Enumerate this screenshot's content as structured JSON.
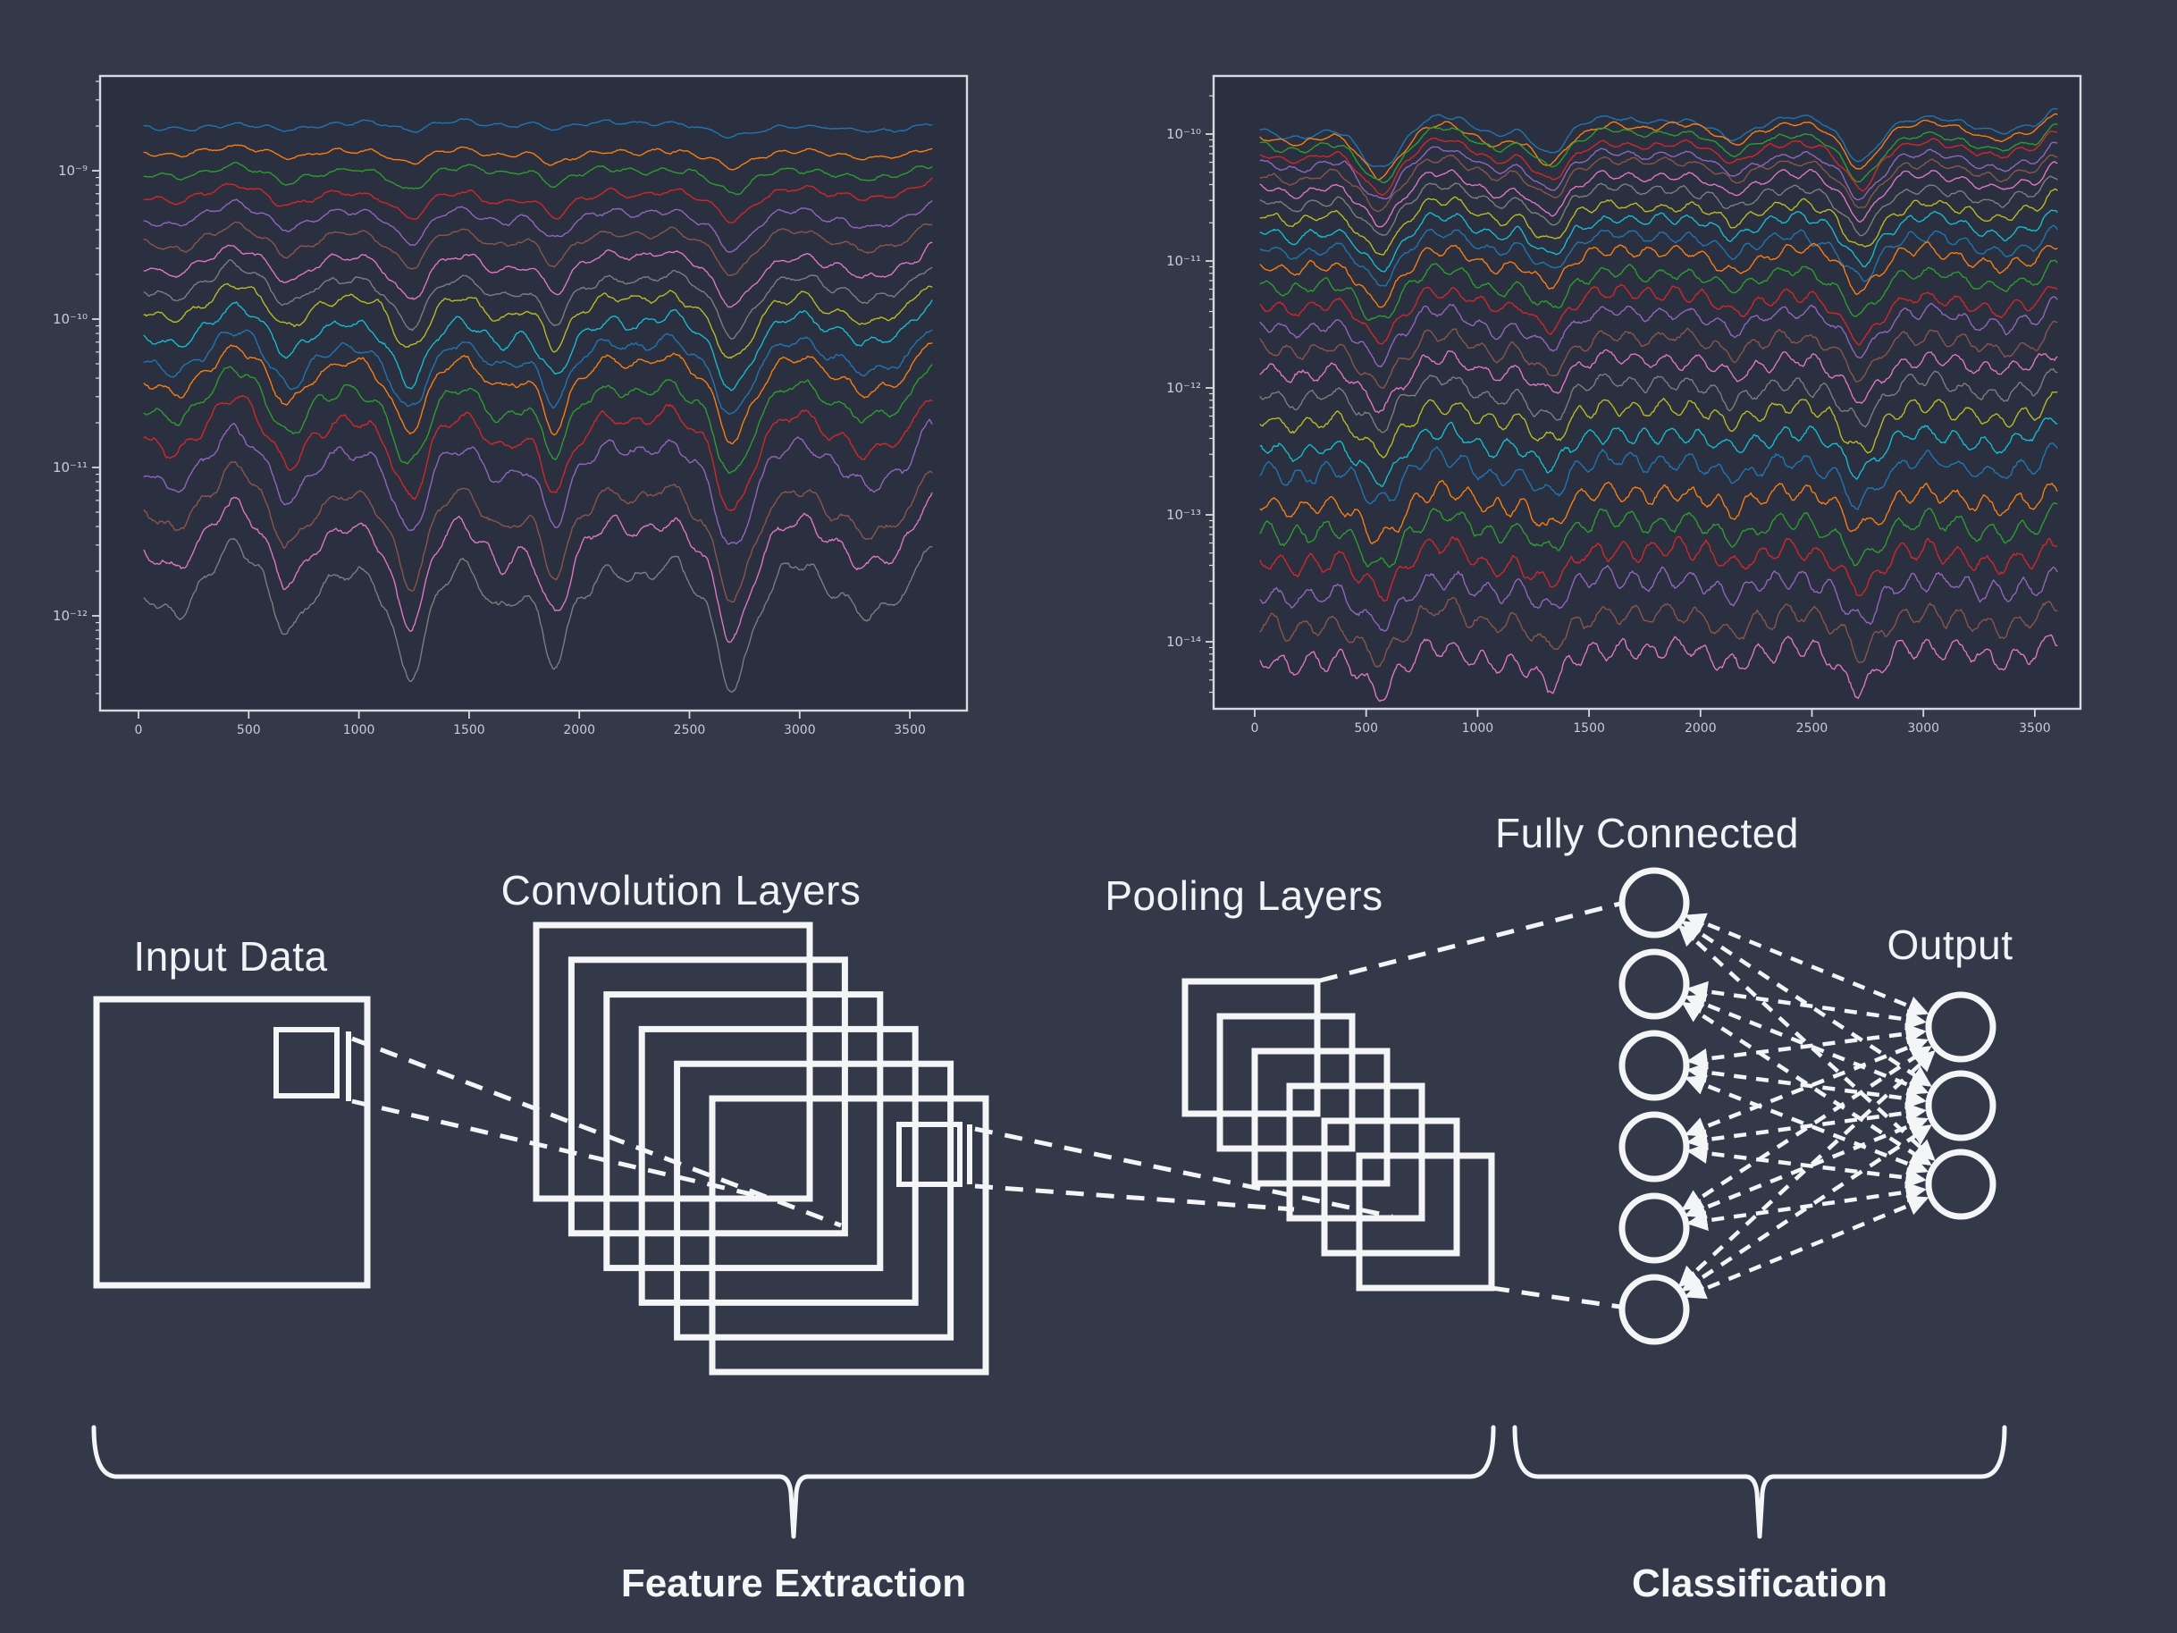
{
  "colors": {
    "background": "#333949",
    "panel_background": "#2b3040",
    "frame": "#d7d9de",
    "tick_label": "#c9ccd4",
    "diagram_stroke": "#f4f5f7"
  },
  "chart_data": [
    {
      "type": "line",
      "title": "",
      "position": "top-left",
      "xlabel": "",
      "ylabel": "",
      "x_range": [
        0,
        3600
      ],
      "xticks": [
        0,
        500,
        1000,
        1500,
        2000,
        2500,
        3000,
        3500
      ],
      "yscale": "log",
      "ytick_labels": [
        "10⁻⁹",
        "10⁻¹⁰",
        "10⁻¹¹",
        "10⁻¹²"
      ],
      "ytick_values": [
        1e-09,
        1e-10,
        1e-11,
        1e-12
      ],
      "grid": false,
      "legend": false,
      "n_traces": 18,
      "color_cycle": [
        "#1f77b4",
        "#ff7f0e",
        "#2ca02c",
        "#d62728",
        "#9467bd",
        "#8c564b",
        "#e377c2",
        "#7f7f7f",
        "#bcbd22",
        "#17becf"
      ],
      "trace_start_levels": [
        1.97e-09,
        1.36e-09,
        9.6e-10,
        6.8e-10,
        4.8e-10,
        3.4e-10,
        2.33e-10,
        1.65e-10,
        1.18e-10,
        8.4e-11,
        5.7e-11,
        4e-11,
        2.7e-11,
        1.72e-11,
        1.01e-11,
        5.6e-12,
        3.1e-12,
        1.5e-12
      ],
      "shared_features": [
        {
          "x": 160,
          "w": 110,
          "a": -0.06
        },
        {
          "x": 440,
          "w": 130,
          "a": 0.1
        },
        {
          "x": 680,
          "w": 90,
          "a": -0.1
        },
        {
          "x": 960,
          "w": 110,
          "a": 0.04
        },
        {
          "x": 1230,
          "w": 90,
          "a": -0.2
        },
        {
          "x": 1450,
          "w": 90,
          "a": 0.05
        },
        {
          "x": 1650,
          "w": 70,
          "a": -0.05
        },
        {
          "x": 1890,
          "w": 80,
          "a": -0.17
        },
        {
          "x": 2150,
          "w": 110,
          "a": 0.05
        },
        {
          "x": 2400,
          "w": 110,
          "a": 0.06
        },
        {
          "x": 2700,
          "w": 100,
          "a": -0.23
        },
        {
          "x": 2990,
          "w": 110,
          "a": 0.06
        },
        {
          "x": 3320,
          "w": 120,
          "a": -0.06
        },
        {
          "x": 3600,
          "w": 70,
          "a": 0.12
        }
      ],
      "trace_amp": {
        "base": 0.25,
        "step": 0.155
      },
      "noise": {
        "base": 0.008,
        "step": 0.0013
      },
      "wobble": {
        "base": 0.012,
        "step": 0.002,
        "period": 150
      },
      "seed": 7
    },
    {
      "type": "line",
      "title": "",
      "position": "top-right",
      "xlabel": "",
      "ylabel": "",
      "x_range": [
        0,
        3600
      ],
      "xticks": [
        0,
        500,
        1000,
        1500,
        2000,
        2500,
        3000,
        3500
      ],
      "yscale": "log",
      "ytick_labels": [
        "10⁻¹⁰",
        "10⁻¹¹",
        "10⁻¹²",
        "10⁻¹³",
        "10⁻¹⁴"
      ],
      "ytick_values": [
        1e-10,
        1e-11,
        1e-12,
        1e-13,
        1e-14
      ],
      "grid": false,
      "legend": false,
      "n_traces": 27,
      "color_cycle": [
        "#1f77b4",
        "#ff7f0e",
        "#2ca02c",
        "#d62728",
        "#9467bd",
        "#8c564b",
        "#e377c2",
        "#7f7f7f",
        "#bcbd22",
        "#17becf"
      ],
      "trace_start_levels": [
        1.2e-10,
        1.06e-10,
        9.2e-11,
        7.8e-11,
        6.5e-11,
        5.3e-11,
        4.25e-11,
        3.33e-11,
        2.56e-11,
        1.93e-11,
        1.43e-11,
        1.04e-11,
        7.4e-12,
        5.14e-12,
        3.51e-12,
        2.35e-12,
        1.55e-12,
        1e-12,
        6.3e-13,
        3.9e-13,
        2.4e-13,
        1.4e-13,
        8.3e-14,
        4.8e-14,
        2.7e-14,
        1.5e-14,
        8e-15
      ],
      "shared_features": [
        {
          "x": 180,
          "w": 150,
          "a": -0.12
        },
        {
          "x": 560,
          "w": 120,
          "a": -0.38
        },
        {
          "x": 830,
          "w": 120,
          "a": 0.09
        },
        {
          "x": 1080,
          "w": 90,
          "a": -0.1
        },
        {
          "x": 1320,
          "w": 100,
          "a": -0.26
        },
        {
          "x": 1600,
          "w": 130,
          "a": 0.07
        },
        {
          "x": 1900,
          "w": 140,
          "a": 0.05
        },
        {
          "x": 2150,
          "w": 90,
          "a": -0.12
        },
        {
          "x": 2430,
          "w": 120,
          "a": 0.06
        },
        {
          "x": 2720,
          "w": 100,
          "a": -0.33
        },
        {
          "x": 3020,
          "w": 130,
          "a": 0.07
        },
        {
          "x": 3330,
          "w": 110,
          "a": -0.07
        },
        {
          "x": 3600,
          "w": 60,
          "a": 0.15
        }
      ],
      "trace_amp": {
        "base": 0.9,
        "step": -0.005
      },
      "noise": {
        "base": 0.01,
        "step": 0.0012
      },
      "wobble": {
        "base": 0.015,
        "step": 0.0022,
        "period": 130
      },
      "seed": 11
    }
  ],
  "diagram": {
    "labels": {
      "input": "Input Data",
      "conv": "Convolution Layers",
      "pool": "Pooling Layers",
      "fc": "Fully Connected",
      "output": "Output",
      "feature_extraction": "Feature Extraction",
      "classification": "Classification"
    },
    "conv_layers": 6,
    "pool_layers": 6,
    "fc_nodes": 6,
    "output_nodes": 3
  }
}
